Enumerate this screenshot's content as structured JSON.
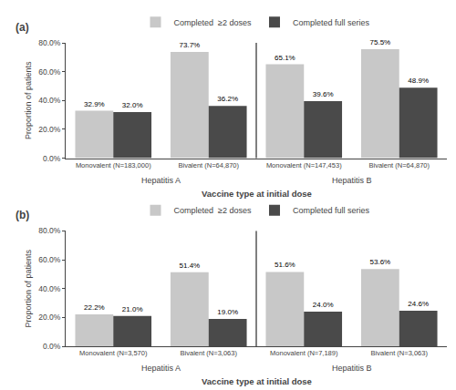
{
  "chart_data": [
    {
      "type": "bar",
      "title": "(a)",
      "categories": [
        "Monovalent (N=183,000)",
        "Bivalent (N=64,870)",
        "Monovalent (N=147,453)",
        "Bivalent (N=64,870)"
      ],
      "annotations": [
        "Hepatitis A",
        "Hepatitis B"
      ],
      "series": [
        {
          "name": "Completed  ≥2 doses",
          "color": "#c8c8c8",
          "values": [
            32.9,
            73.7,
            65.1,
            75.5
          ],
          "value_labels": [
            "32.9%",
            "73.7%",
            "65.1%",
            "75.5%"
          ]
        },
        {
          "name": "Completed full series",
          "color": "#4a4a4a",
          "values": [
            32.0,
            36.2,
            39.6,
            48.9
          ],
          "value_labels": [
            "32.0%",
            "36.2%",
            "39.6%",
            "48.9%"
          ]
        }
      ],
      "xlabel": "Vaccine type at initial dose",
      "ylabel": "Proportion of patients",
      "ylim": [
        0,
        80
      ],
      "yticks": [
        {
          "value": 0,
          "label": "0.0%"
        },
        {
          "value": 20,
          "label": "20.0%"
        },
        {
          "value": 40,
          "label": "40.0%"
        },
        {
          "value": 60,
          "label": "60.0%"
        },
        {
          "value": 80,
          "label": "80.0%"
        }
      ],
      "grid": false,
      "legend": "top",
      "data_labels": true
    },
    {
      "type": "bar",
      "title": "(b)",
      "categories": [
        "Monovalent (N=3,570)",
        "Bivalent (N=3,063)",
        "Monovalent (N=7,189)",
        "Bivalent (N=3,063)"
      ],
      "annotations": [
        "Hepatitis A",
        "Hepatitis B"
      ],
      "series": [
        {
          "name": "Completed  ≥2 doses",
          "color": "#c8c8c8",
          "values": [
            22.2,
            51.4,
            51.6,
            53.6
          ],
          "value_labels": [
            "22.2%",
            "51.4%",
            "51.6%",
            "53.6%"
          ]
        },
        {
          "name": "Completed full series",
          "color": "#4a4a4a",
          "values": [
            21.0,
            19.0,
            24.0,
            24.6
          ],
          "value_labels": [
            "21.0%",
            "19.0%",
            "24.0%",
            "24.6%"
          ]
        }
      ],
      "xlabel": "Vaccine type at initial dose",
      "ylabel": "Proportion of patients",
      "ylim": [
        0,
        80
      ],
      "yticks": [
        {
          "value": 0,
          "label": "0.0%"
        },
        {
          "value": 20,
          "label": "20.0%"
        },
        {
          "value": 40,
          "label": "40.0%"
        },
        {
          "value": 60,
          "label": "60.0%"
        },
        {
          "value": 80,
          "label": "80.0%"
        }
      ],
      "grid": false,
      "legend": "top",
      "data_labels": true
    }
  ]
}
